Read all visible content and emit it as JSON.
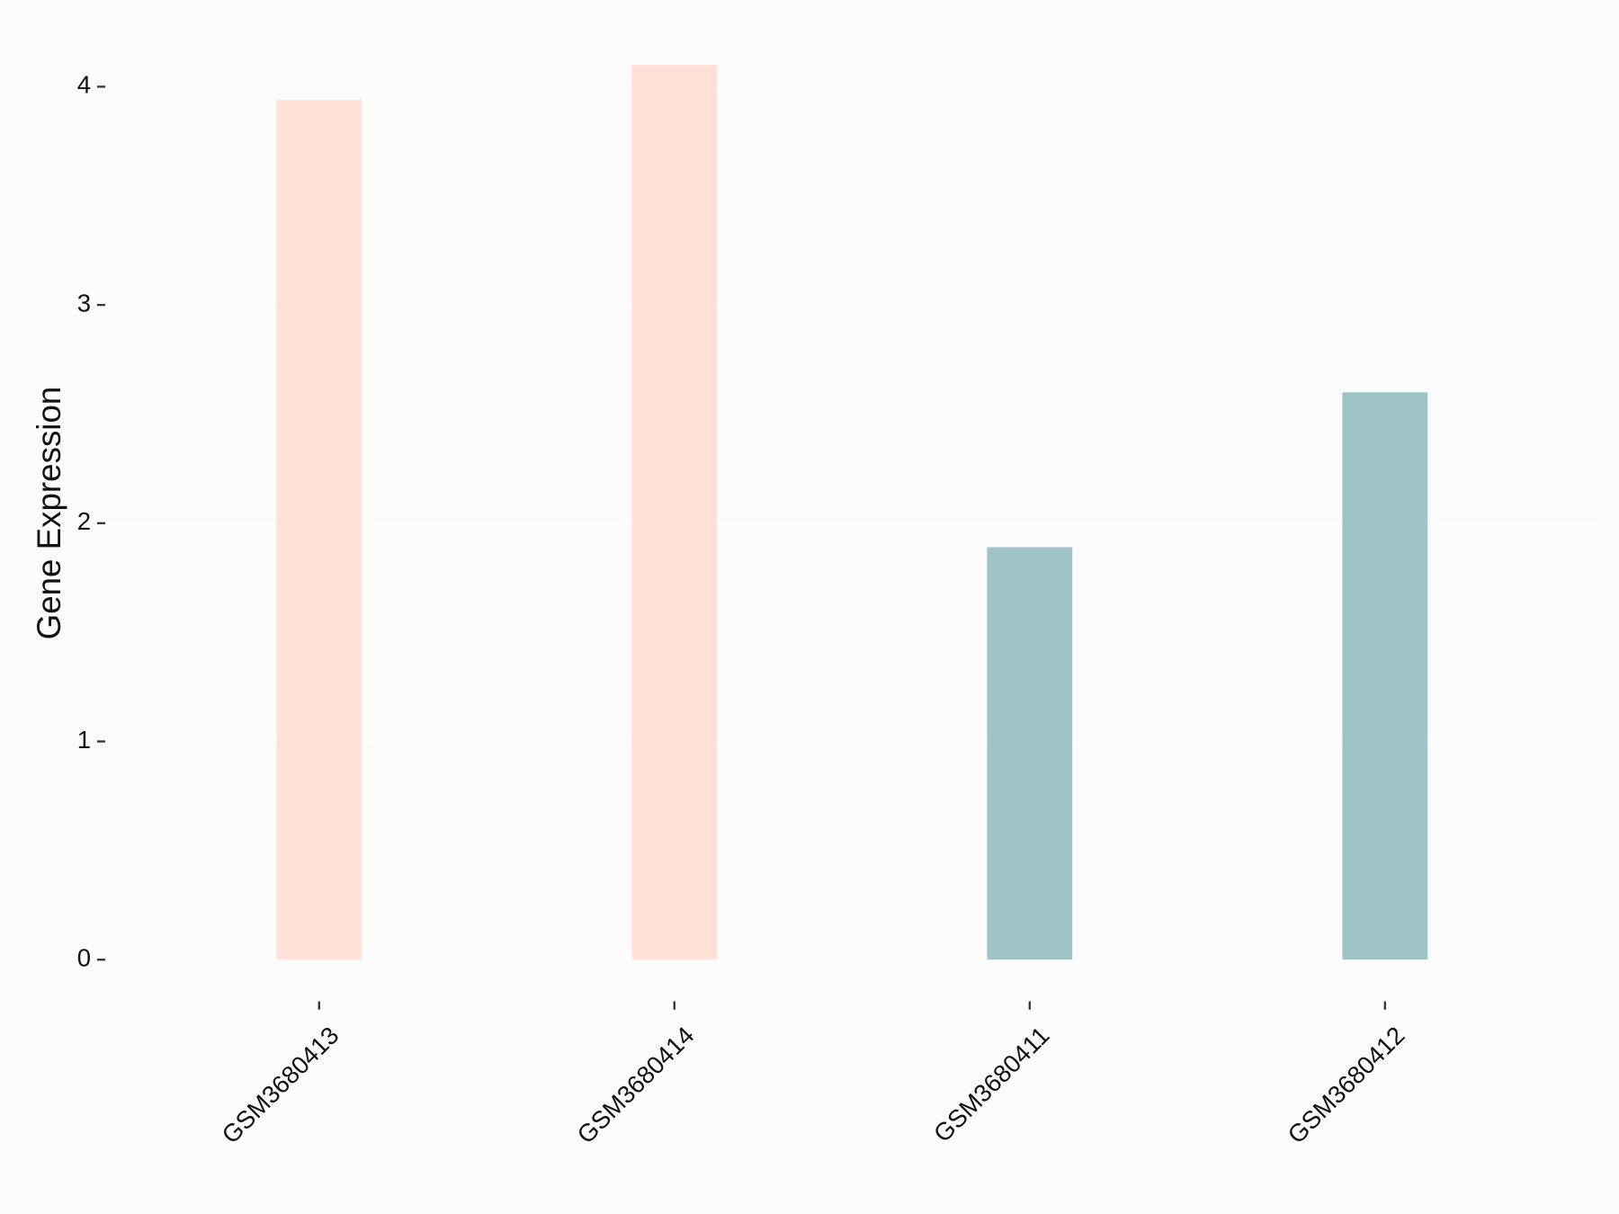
{
  "chart_data": {
    "type": "bar",
    "y_label": "Gene Expression",
    "categories": [
      "GSM3680413",
      "GSM3680414",
      "GSM3680411",
      "GSM3680412"
    ],
    "values": [
      3.94,
      4.1,
      1.89,
      2.6
    ],
    "colors": [
      "#ffe1d7",
      "#ffe1d7",
      "#9ec4c8",
      "#9ec4c8"
    ],
    "ylim": [
      -0.205,
      4.305
    ],
    "yticks": [
      0,
      1,
      2,
      3,
      4
    ],
    "grid": true
  }
}
